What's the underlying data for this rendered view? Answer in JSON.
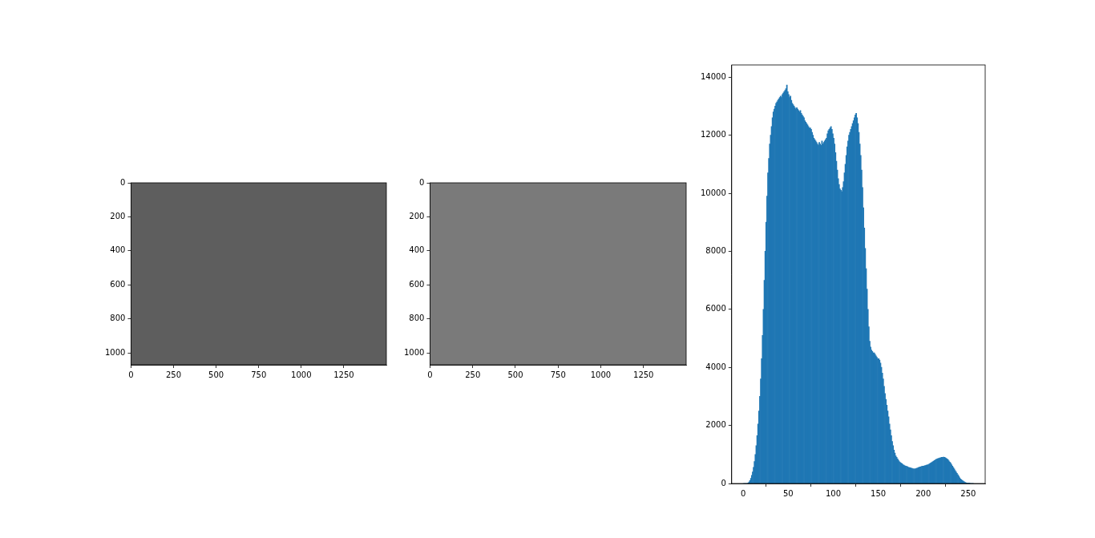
{
  "chart_data": [
    {
      "type": "image",
      "xlim": [
        0,
        1500
      ],
      "ylim": [
        1070,
        0
      ],
      "xticks": [
        0,
        250,
        500,
        750,
        1000,
        1250
      ],
      "yticks": [
        0,
        200,
        400,
        600,
        800,
        1000
      ],
      "grid": false
    },
    {
      "type": "image",
      "xlim": [
        0,
        1500
      ],
      "ylim": [
        1070,
        0
      ],
      "xticks": [
        0,
        250,
        500,
        750,
        1000,
        1250
      ],
      "yticks": [
        0,
        200,
        400,
        600,
        800,
        1000
      ],
      "grid": false
    },
    {
      "type": "histogram",
      "color": "#1f77b4",
      "grid": false,
      "xlim": [
        -12.8,
        268.8
      ],
      "ylim": [
        0,
        14420
      ],
      "xticks": [
        0,
        50,
        100,
        150,
        200,
        250
      ],
      "yticks": [
        0,
        2000,
        4000,
        6000,
        8000,
        10000,
        12000,
        14000
      ],
      "bins": [
        0,
        1,
        2,
        3,
        4,
        5,
        6,
        7,
        8,
        9,
        10,
        11,
        12,
        13,
        14,
        15,
        16,
        17,
        18,
        19,
        20,
        21,
        22,
        23,
        24,
        25,
        26,
        27,
        28,
        29,
        30,
        31,
        32,
        33,
        34,
        35,
        36,
        37,
        38,
        39,
        40,
        41,
        42,
        43,
        44,
        45,
        46,
        47,
        48,
        49,
        50,
        51,
        52,
        53,
        54,
        55,
        56,
        57,
        58,
        59,
        60,
        61,
        62,
        63,
        64,
        65,
        66,
        67,
        68,
        69,
        70,
        71,
        72,
        73,
        74,
        75,
        76,
        77,
        78,
        79,
        80,
        81,
        82,
        83,
        84,
        85,
        86,
        87,
        88,
        89,
        90,
        91,
        92,
        93,
        94,
        95,
        96,
        97,
        98,
        99,
        100,
        101,
        102,
        103,
        104,
        105,
        106,
        107,
        108,
        109,
        110,
        111,
        112,
        113,
        114,
        115,
        116,
        117,
        118,
        119,
        120,
        121,
        122,
        123,
        124,
        125,
        126,
        127,
        128,
        129,
        130,
        131,
        132,
        133,
        134,
        135,
        136,
        137,
        138,
        139,
        140,
        141,
        142,
        143,
        144,
        145,
        146,
        147,
        148,
        149,
        150,
        151,
        152,
        153,
        154,
        155,
        156,
        157,
        158,
        159,
        160,
        161,
        162,
        163,
        164,
        165,
        166,
        167,
        168,
        169,
        170,
        171,
        172,
        173,
        174,
        175,
        176,
        177,
        178,
        179,
        180,
        181,
        182,
        183,
        184,
        185,
        186,
        187,
        188,
        189,
        190,
        191,
        192,
        193,
        194,
        195,
        196,
        197,
        198,
        199,
        200,
        201,
        202,
        203,
        204,
        205,
        206,
        207,
        208,
        209,
        210,
        211,
        212,
        213,
        214,
        215,
        216,
        217,
        218,
        219,
        220,
        221,
        222,
        223,
        224,
        225,
        226,
        227,
        228,
        229,
        230,
        231,
        232,
        233,
        234,
        235,
        236,
        237,
        238,
        239,
        240,
        241,
        242,
        243,
        244,
        245,
        246,
        247,
        248,
        249,
        250,
        251,
        252,
        253,
        254,
        255,
        256
      ],
      "values": [
        0,
        0,
        0,
        0,
        0,
        20,
        50,
        100,
        180,
        280,
        400,
        560,
        760,
        1000,
        1300,
        1650,
        2050,
        2500,
        3000,
        3600,
        4300,
        5100,
        6000,
        7000,
        8000,
        9000,
        9900,
        10700,
        11200,
        11700,
        12000,
        12300,
        12600,
        12800,
        12900,
        13000,
        13100,
        13150,
        13200,
        13250,
        13300,
        13350,
        13300,
        13400,
        13450,
        13500,
        13550,
        13600,
        13730,
        13500,
        13400,
        13300,
        13350,
        13200,
        13100,
        13050,
        13000,
        12950,
        12900,
        12950,
        12900,
        12850,
        12800,
        12850,
        12750,
        12700,
        12650,
        12600,
        12500,
        12450,
        12400,
        12350,
        12300,
        12250,
        12250,
        12200,
        12100,
        12000,
        11900,
        11850,
        11800,
        11750,
        11700,
        11650,
        11750,
        11700,
        11650,
        11800,
        11700,
        11750,
        11800,
        11850,
        11900,
        12050,
        12150,
        12200,
        12250,
        12300,
        12200,
        12050,
        11900,
        11700,
        11400,
        11100,
        10800,
        10500,
        10300,
        10150,
        10100,
        10050,
        10200,
        10400,
        10700,
        11000,
        11300,
        11600,
        11800,
        12000,
        12100,
        12200,
        12300,
        12400,
        12500,
        12600,
        12700,
        12750,
        12600,
        12400,
        12100,
        11700,
        11300,
        10800,
        10200,
        9500,
        8800,
        8100,
        7400,
        6700,
        6000,
        5400,
        4900,
        4700,
        4600,
        4550,
        4500,
        4500,
        4450,
        4400,
        4350,
        4300,
        4300,
        4250,
        4150,
        4000,
        3800,
        3600,
        3350,
        3100,
        2900,
        2700,
        2500,
        2300,
        2050,
        1850,
        1650,
        1450,
        1300,
        1150,
        1050,
        950,
        900,
        850,
        800,
        750,
        720,
        700,
        680,
        650,
        630,
        610,
        600,
        590,
        580,
        560,
        550,
        540,
        530,
        520,
        510,
        500,
        500,
        510,
        520,
        530,
        550,
        560,
        570,
        580,
        590,
        600,
        600,
        610,
        620,
        630,
        640,
        650,
        670,
        690,
        710,
        730,
        750,
        770,
        790,
        810,
        830,
        850,
        860,
        870,
        880,
        890,
        900,
        905,
        910,
        900,
        890,
        870,
        850,
        820,
        780,
        740,
        700,
        650,
        600,
        550,
        500,
        450,
        400,
        350,
        300,
        250,
        200,
        160,
        130,
        100,
        80,
        60,
        40,
        25,
        15,
        8,
        4,
        2,
        0,
        0,
        0,
        0
      ]
    }
  ]
}
